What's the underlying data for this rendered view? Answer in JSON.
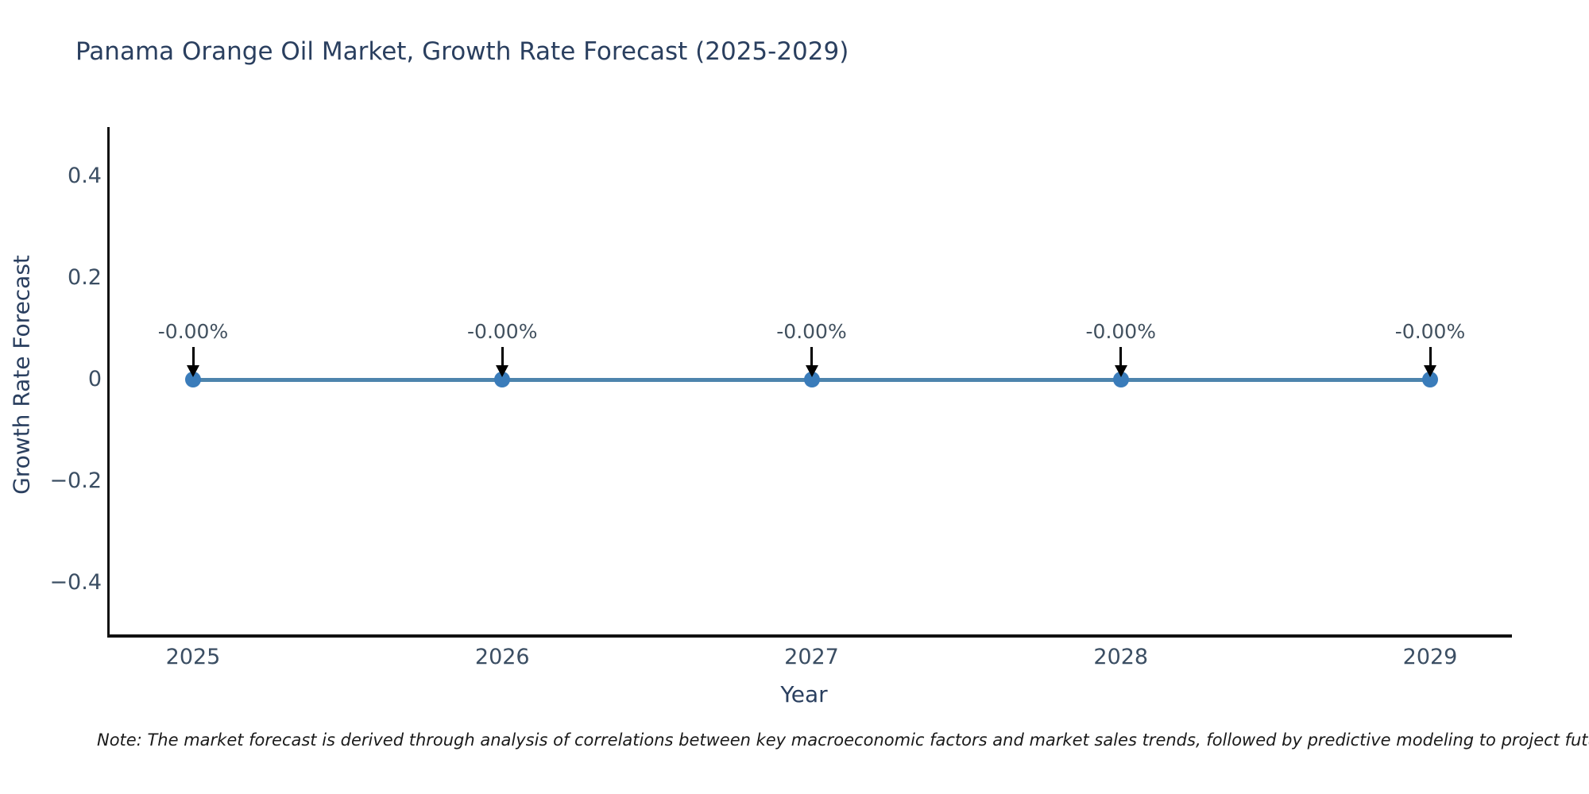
{
  "title": "Panama Orange Oil Market, Growth Rate Forecast (2025-2029)",
  "note": "Note: The market forecast is derived through analysis of correlations between key macroeconomic factors and market sales trends, followed by predictive modeling to project future sales",
  "chart_data": {
    "type": "line",
    "title": "Panama Orange Oil Market, Growth Rate Forecast (2025-2029)",
    "xlabel": "Year",
    "ylabel": "Growth Rate Forecast",
    "x": [
      2025,
      2026,
      2027,
      2028,
      2029
    ],
    "series": [
      {
        "name": "Growth Rate Forecast",
        "values": [
          0,
          0,
          0,
          0,
          0
        ]
      }
    ],
    "point_labels": [
      "-0.00%",
      "-0.00%",
      "-0.00%",
      "-0.00%",
      "-0.00%"
    ],
    "ylim": [
      -0.5,
      0.5
    ],
    "yticks": [
      {
        "value": 0.4,
        "label": "0.4"
      },
      {
        "value": 0.2,
        "label": "0.2"
      },
      {
        "value": 0,
        "label": "0"
      },
      {
        "value": -0.2,
        "label": "−0.2"
      },
      {
        "value": -0.4,
        "label": "−0.4"
      }
    ],
    "xticks": [
      "2025",
      "2026",
      "2027",
      "2028",
      "2029"
    ],
    "grid": false,
    "legend": false,
    "colors": {
      "line": "#4d84ad",
      "marker": "#3a7cba",
      "arrow": "#000000",
      "title": "#2a3f5f",
      "tick_label": "#3b4e63",
      "annotation": "#42515f"
    }
  }
}
